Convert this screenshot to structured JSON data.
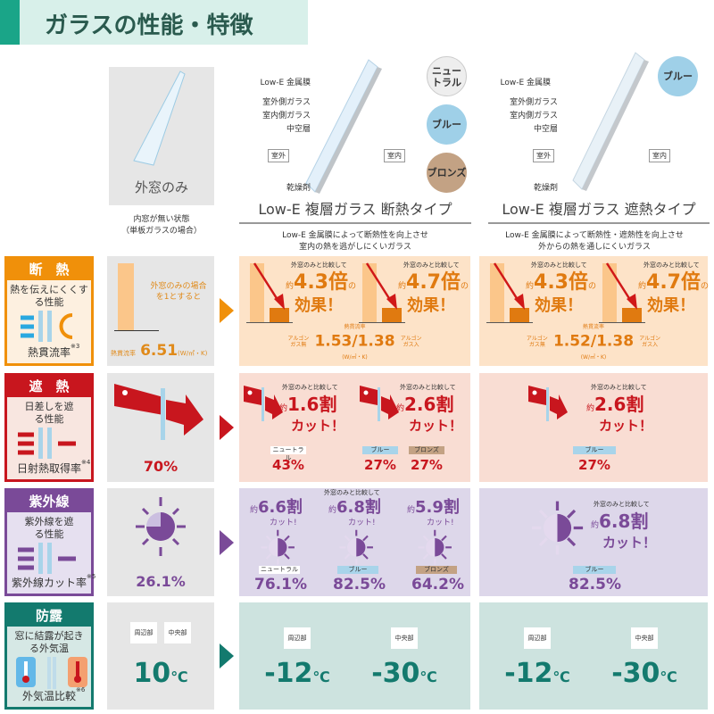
{
  "title": "ガラスの性能・特徴",
  "colors": {
    "insulation": "#f0900a",
    "shading": "#c8161e",
    "uv": "#7a4a98",
    "dew": "#137a6e"
  },
  "single": {
    "name": "外窓のみ",
    "note1": "内窓が無い状態",
    "note2": "（単板ガラスの場合）"
  },
  "glass_labels": {
    "lowe": "Low-E 金属膜",
    "outer": "室外側ガラス",
    "inner": "室内側ガラス",
    "hollow": "中空層",
    "dry": "乾燥剤",
    "outside": "室外",
    "inside": "室内"
  },
  "col2": {
    "title": "Low-E 複層ガラス 断熱タイプ",
    "desc1": "Low-E 金属膜によって断熱性を向上させ",
    "desc2": "室内の熱を逃がしにくいガラス",
    "colors": [
      "ニュートラル",
      "ブルー",
      "ブロンズ"
    ]
  },
  "col3": {
    "title": "Low-E 複層ガラス 遮熱タイプ",
    "desc1": "Low-E 金属膜によって断熱性・遮熱性を向上させ",
    "desc2": "外からの熱を通しにくいガラス",
    "colors": [
      "ブルー"
    ]
  },
  "compare": "外窓のみと比較して",
  "about": "約",
  "rows": {
    "insulation": {
      "head": "断　熱",
      "desc": "熱を伝えにくくする性能",
      "foot": "熱貫流率",
      "note": "※3",
      "single_text": "外窓のみの場合を1とすると",
      "single_label": "熱貫流率",
      "single_value": "6.51",
      "single_unit": "(W/㎡・K)",
      "col2": {
        "a": "4.3倍",
        "b": "4.7倍",
        "suffix": "の",
        "effect": "効果！",
        "label": "熱貫流率",
        "argon_no": "アルゴンガス無",
        "value": "1.53/1.38",
        "argon_yes": "アルゴンガス入",
        "unit": "(W/㎡・K)"
      },
      "col3": {
        "a": "4.3倍",
        "b": "4.7倍",
        "suffix": "の",
        "effect": "効果！",
        "label": "熱貫流率",
        "argon_no": "アルゴンガス無",
        "value": "1.52/1.38",
        "argon_yes": "アルゴンガス入",
        "unit": "(W/㎡・K)"
      }
    },
    "shading": {
      "head": "遮　熱",
      "desc": "日差しを遮る性能",
      "foot": "日射熱取得率",
      "note": "※4",
      "single_value": "70%",
      "col2": {
        "a": "1.6割",
        "b": "2.6割",
        "cut": "カット！",
        "items": [
          {
            "tag": "ニュートラル",
            "value": "43%"
          },
          {
            "tag": "ブルー",
            "value": "27%"
          },
          {
            "tag": "ブロンズ",
            "value": "27%"
          }
        ]
      },
      "col3": {
        "a": "2.6割",
        "cut": "カット！",
        "items": [
          {
            "tag": "ブルー",
            "value": "27%"
          }
        ]
      }
    },
    "uv": {
      "head": "紫外線",
      "desc": "紫外線を遮る性能",
      "foot": "紫外線カット率",
      "note": "※5",
      "single_value": "26.1%",
      "col2": {
        "cuts": [
          "6.6割",
          "6.8割",
          "5.9割"
        ],
        "cut": "カット!",
        "items": [
          {
            "tag": "ニュートラル",
            "value": "76.1%"
          },
          {
            "tag": "ブルー",
            "value": "82.5%"
          },
          {
            "tag": "ブロンズ",
            "value": "64.2%"
          }
        ]
      },
      "col3": {
        "a": "6.8割",
        "cut": "カット！",
        "items": [
          {
            "tag": "ブルー",
            "value": "82.5%"
          }
        ]
      }
    },
    "dew": {
      "head": "防露",
      "desc": "窓に結露が起きる外気温",
      "foot": "外気温比較",
      "note": "※6",
      "edge": "周辺部",
      "center": "中央部",
      "single_value": "10",
      "unit": "℃",
      "col2": {
        "edge": "-12",
        "center": "-30"
      },
      "col3": {
        "edge": "-12",
        "center": "-30"
      }
    }
  }
}
